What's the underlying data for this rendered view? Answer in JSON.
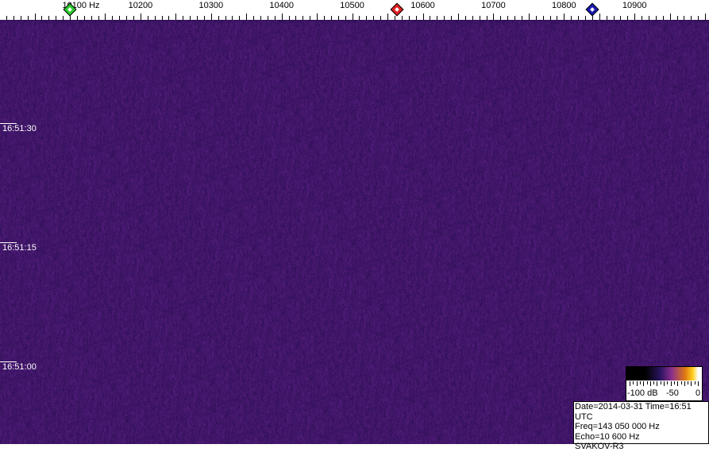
{
  "frequency_axis": {
    "labels": [
      "10100 Hz",
      "10200",
      "10300",
      "10400",
      "10500",
      "10600",
      "10700",
      "10800",
      "10900"
    ],
    "values": [
      10100,
      10200,
      10300,
      10400,
      10500,
      10600,
      10700,
      10800,
      10900
    ]
  },
  "time_axis": {
    "labels": [
      "16:51:30",
      "16:51:15",
      "16:51:00"
    ]
  },
  "markers": [
    {
      "name": "green",
      "color": "#2ecc2e",
      "frequency_hz": 10100
    },
    {
      "name": "red",
      "color": "#e02020",
      "frequency_hz": 10563
    },
    {
      "name": "blue",
      "color": "#1a1ab0",
      "frequency_hz": 10840
    }
  ],
  "legend": {
    "labels": [
      "-100 dB",
      "-50",
      "0"
    ]
  },
  "info": {
    "line1": "Date=2014-03-31 Time=16:51 UTC",
    "line2": "Freq=143 050 000 Hz",
    "line3": "Echo=10 600 Hz",
    "line4": "SVAKOV-R3"
  },
  "colors": {
    "background_noise": "#3b1d80"
  }
}
